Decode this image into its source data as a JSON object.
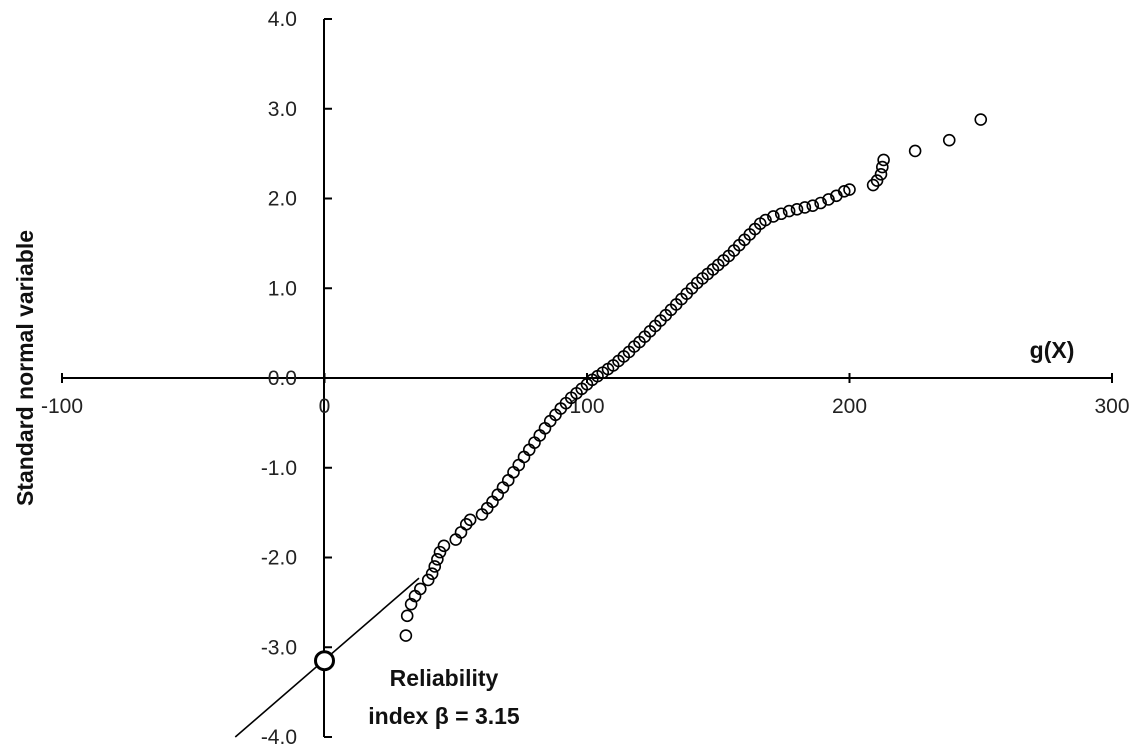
{
  "chart_data": {
    "type": "scatter",
    "title": "",
    "xlabel": "g(X)",
    "ylabel": "Standard normal variable",
    "xlim": [
      -100,
      300
    ],
    "ylim": [
      -4.0,
      4.0
    ],
    "x_ticks": [
      "-100",
      "0",
      "100",
      "200",
      "300"
    ],
    "y_ticks": [
      "-4.0",
      "-3.0",
      "-2.0",
      "-1.0",
      "0.0",
      "1.0",
      "2.0",
      "3.0",
      "4.0"
    ],
    "grid": false,
    "legend": "none",
    "marker": "open-circle",
    "marker_color": "#000000",
    "series": [
      {
        "points": [
          [
            31,
            -2.87
          ],
          [
            31.5,
            -2.65
          ],
          [
            33,
            -2.52
          ],
          [
            34.5,
            -2.43
          ],
          [
            36.5,
            -2.35
          ],
          [
            39.5,
            -2.25
          ],
          [
            41,
            -2.18
          ],
          [
            42,
            -2.1
          ],
          [
            43,
            -2.02
          ],
          [
            44,
            -1.94
          ],
          [
            45.5,
            -1.87
          ],
          [
            50,
            -1.8
          ],
          [
            52,
            -1.72
          ],
          [
            54,
            -1.63
          ],
          [
            55.5,
            -1.58
          ],
          [
            60,
            -1.52
          ],
          [
            62,
            -1.45
          ],
          [
            64,
            -1.38
          ],
          [
            66,
            -1.3
          ],
          [
            68,
            -1.22
          ],
          [
            70,
            -1.14
          ],
          [
            72,
            -1.05
          ],
          [
            74,
            -0.97
          ],
          [
            76,
            -0.88
          ],
          [
            78,
            -0.8
          ],
          [
            80,
            -0.72
          ],
          [
            82,
            -0.64
          ],
          [
            84,
            -0.56
          ],
          [
            86,
            -0.48
          ],
          [
            88,
            -0.41
          ],
          [
            90,
            -0.34
          ],
          [
            92,
            -0.28
          ],
          [
            94,
            -0.22
          ],
          [
            96,
            -0.17
          ],
          [
            98,
            -0.12
          ],
          [
            100,
            -0.07
          ],
          [
            102,
            -0.02
          ],
          [
            104,
            0.02
          ],
          [
            106,
            0.06
          ],
          [
            108,
            0.1
          ],
          [
            110,
            0.14
          ],
          [
            112,
            0.19
          ],
          [
            114,
            0.24
          ],
          [
            116,
            0.29
          ],
          [
            118,
            0.35
          ],
          [
            120,
            0.4
          ],
          [
            122,
            0.46
          ],
          [
            124,
            0.52
          ],
          [
            126,
            0.58
          ],
          [
            128,
            0.64
          ],
          [
            130,
            0.7
          ],
          [
            132,
            0.76
          ],
          [
            134,
            0.82
          ],
          [
            136,
            0.88
          ],
          [
            138,
            0.94
          ],
          [
            140,
            1.0
          ],
          [
            142,
            1.06
          ],
          [
            144,
            1.11
          ],
          [
            146,
            1.16
          ],
          [
            148,
            1.21
          ],
          [
            150,
            1.26
          ],
          [
            152,
            1.31
          ],
          [
            154,
            1.36
          ],
          [
            156,
            1.42
          ],
          [
            158,
            1.48
          ],
          [
            160,
            1.54
          ],
          [
            162,
            1.6
          ],
          [
            164,
            1.66
          ],
          [
            166,
            1.72
          ],
          [
            168,
            1.76
          ],
          [
            171,
            1.8
          ],
          [
            174,
            1.83
          ],
          [
            177,
            1.86
          ],
          [
            180,
            1.88
          ],
          [
            183,
            1.9
          ],
          [
            186,
            1.92
          ],
          [
            189,
            1.95
          ],
          [
            192,
            1.99
          ],
          [
            195,
            2.03
          ],
          [
            198,
            2.08
          ],
          [
            200,
            2.1
          ],
          [
            209,
            2.15
          ],
          [
            210.5,
            2.2
          ],
          [
            212,
            2.27
          ],
          [
            212.5,
            2.35
          ],
          [
            213,
            2.43
          ],
          [
            225,
            2.53
          ],
          [
            238,
            2.65
          ],
          [
            250,
            2.88
          ]
        ]
      }
    ],
    "fit_line": {
      "x": [
        -34,
        36
      ],
      "y": [
        -4.0,
        -2.23
      ]
    },
    "highlight_point": {
      "x": 0,
      "y": -3.15
    },
    "annotation": {
      "line1": "Reliability",
      "line2": "index β = 3.15"
    }
  }
}
